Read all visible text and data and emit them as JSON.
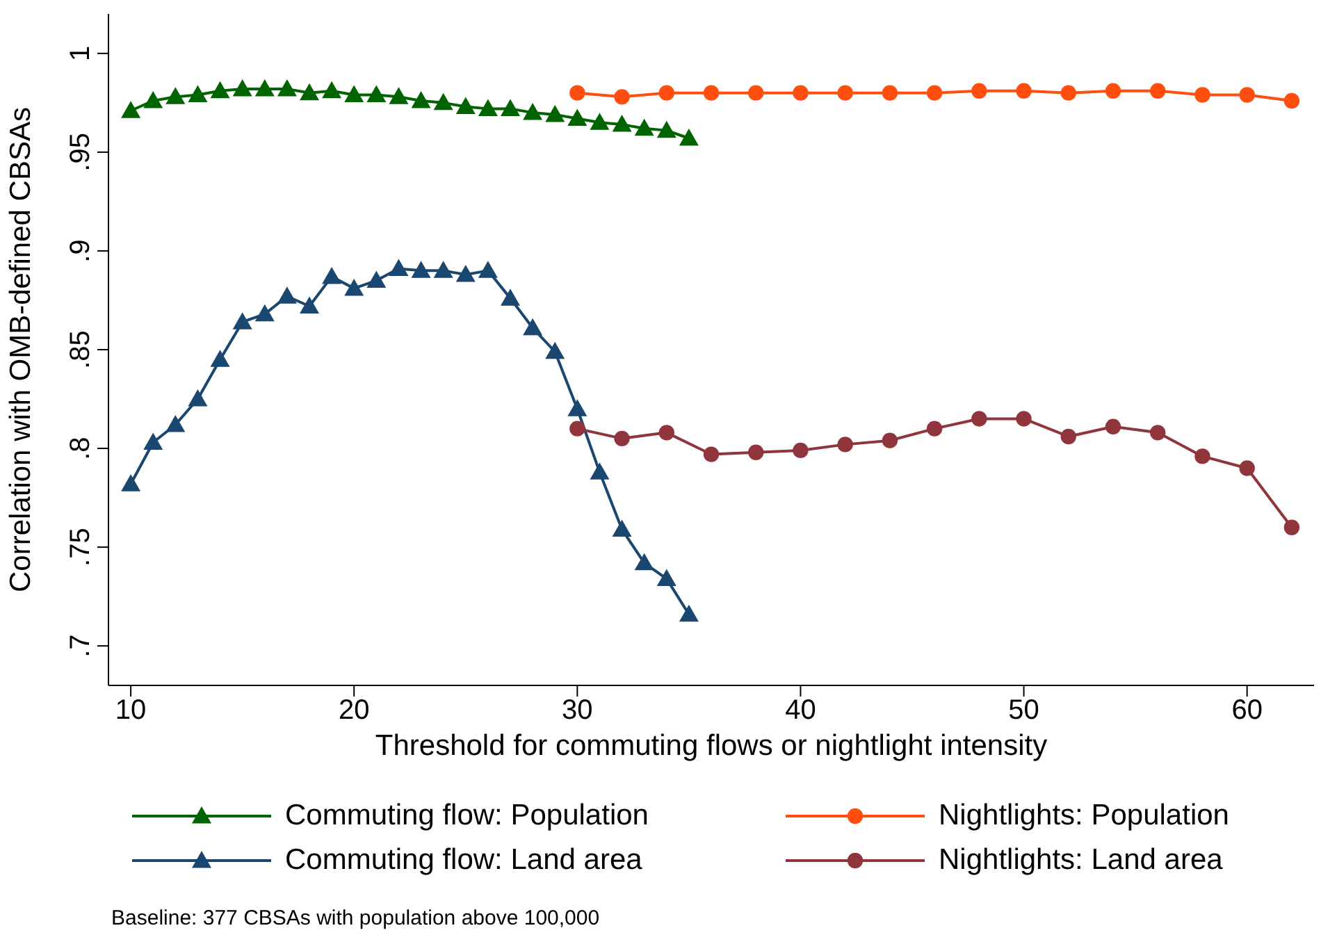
{
  "chart_data": {
    "type": "line",
    "xlabel": "Threshold for commuting flows or nightlight intensity",
    "ylabel": "Correlation with OMB-defined CBSAs",
    "xlim": [
      9,
      63
    ],
    "xticks": [
      10,
      20,
      30,
      40,
      50,
      60
    ],
    "ylim": [
      0.68,
      1.02
    ],
    "yticks": [
      {
        "value": 0.7,
        "label": ".7"
      },
      {
        "value": 0.75,
        "label": ".75"
      },
      {
        "value": 0.8,
        "label": ".8"
      },
      {
        "value": 0.85,
        "label": ".85"
      },
      {
        "value": 0.9,
        "label": ".9"
      },
      {
        "value": 0.95,
        "label": ".95"
      },
      {
        "value": 1,
        "label": "1"
      }
    ],
    "grid": false,
    "legend": "bottom",
    "line_style": "solid",
    "series": [
      {
        "name": "Commuting flow: Population",
        "color": "#006400",
        "marker": "triangle",
        "x": [
          10,
          11,
          12,
          13,
          14,
          15,
          16,
          17,
          18,
          19,
          20,
          21,
          22,
          23,
          24,
          25,
          26,
          27,
          28,
          29,
          30,
          31,
          32,
          33,
          34,
          35
        ],
        "values": [
          0.971,
          0.976,
          0.978,
          0.979,
          0.981,
          0.982,
          0.982,
          0.982,
          0.98,
          0.981,
          0.979,
          0.979,
          0.978,
          0.976,
          0.975,
          0.973,
          0.972,
          0.972,
          0.97,
          0.969,
          0.967,
          0.965,
          0.964,
          0.962,
          0.961,
          0.957
        ]
      },
      {
        "name": "Nightlights: Population",
        "color": "#ff4e0e",
        "marker": "circle",
        "x": [
          30,
          32,
          34,
          36,
          38,
          40,
          42,
          44,
          46,
          48,
          50,
          52,
          54,
          56,
          58,
          60,
          62
        ],
        "values": [
          0.98,
          0.978,
          0.98,
          0.98,
          0.98,
          0.98,
          0.98,
          0.98,
          0.98,
          0.981,
          0.981,
          0.98,
          0.981,
          0.981,
          0.979,
          0.979,
          0.976
        ]
      },
      {
        "name": "Commuting flow: Land area",
        "color": "#1a476f",
        "marker": "triangle",
        "x": [
          10,
          11,
          12,
          13,
          14,
          15,
          16,
          17,
          18,
          19,
          20,
          21,
          22,
          23,
          24,
          25,
          26,
          27,
          28,
          29,
          30,
          31,
          32,
          33,
          34,
          35
        ],
        "values": [
          0.782,
          0.803,
          0.812,
          0.825,
          0.845,
          0.864,
          0.868,
          0.877,
          0.872,
          0.887,
          0.881,
          0.885,
          0.891,
          0.89,
          0.89,
          0.888,
          0.89,
          0.876,
          0.861,
          0.849,
          0.82,
          0.788,
          0.759,
          0.742,
          0.734,
          0.716
        ]
      },
      {
        "name": "Nightlights: Land area",
        "color": "#90353b",
        "marker": "circle",
        "x": [
          30,
          32,
          34,
          36,
          38,
          40,
          42,
          44,
          46,
          48,
          50,
          52,
          54,
          56,
          58,
          60,
          62
        ],
        "values": [
          0.81,
          0.805,
          0.808,
          0.797,
          0.798,
          0.799,
          0.802,
          0.804,
          0.81,
          0.815,
          0.815,
          0.806,
          0.811,
          0.808,
          0.796,
          0.79,
          0.76
        ]
      }
    ],
    "annotations": [
      "Baseline: 377 CBSAs with population above 100,000"
    ]
  }
}
